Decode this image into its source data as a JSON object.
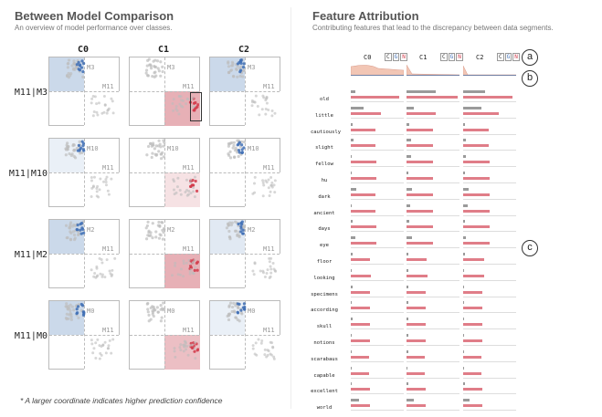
{
  "left": {
    "title": "Between Model Comparison",
    "subtitle": "An overview of model performance over classes.",
    "columns": [
      "C0",
      "C1",
      "C2"
    ],
    "rows": [
      {
        "label": "M11|M3",
        "top_label": "M3",
        "bottom_label": "M11",
        "tl": [
          "#cbd9ea",
          "#ffffff",
          "#cbd9ea"
        ],
        "br": [
          "#ffffff",
          "#e7b0b6",
          "#ffffff"
        ]
      },
      {
        "label": "M11|M10",
        "top_label": "M10",
        "bottom_label": "M11",
        "tl": [
          "#eaf0f7",
          "#ffffff",
          "#ffffff"
        ],
        "br": [
          "#ffffff",
          "#f6e2e4",
          "#ffffff"
        ]
      },
      {
        "label": "M11|M2",
        "top_label": "M2",
        "bottom_label": "M11",
        "tl": [
          "#cbd9ea",
          "#ffffff",
          "#e1e9f3"
        ],
        "br": [
          "#ffffff",
          "#e7b0b6",
          "#ffffff"
        ]
      },
      {
        "label": "M11|M0",
        "top_label": "M0",
        "bottom_label": "M11",
        "tl": [
          "#cbd9ea",
          "#ffffff",
          "#eaf0f7"
        ],
        "br": [
          "#ffffff",
          "#ecbfc4",
          "#ffffff"
        ]
      }
    ],
    "note": "* A larger coordinate indicates higher prediction confidence"
  },
  "right": {
    "title": "Feature Attribution",
    "subtitle": "Contributing features that lead to the discrepancy between data segments.",
    "columns": [
      "C0",
      "C1",
      "C2"
    ],
    "cgn_labels": [
      "C",
      "G",
      "N"
    ],
    "badges": [
      "a",
      "b",
      "c"
    ],
    "features": [
      {
        "name": "old",
        "bars": [
          [
            0.09,
            0.92
          ],
          [
            0.55,
            0.97
          ],
          [
            0.42,
            0.93
          ]
        ]
      },
      {
        "name": "little",
        "bars": [
          [
            0.24,
            0.57
          ],
          [
            0.14,
            0.56
          ],
          [
            0.34,
            0.68
          ]
        ]
      },
      {
        "name": "cautiously",
        "bars": [
          [
            0.03,
            0.46
          ],
          [
            0.05,
            0.5
          ],
          [
            0.04,
            0.49
          ]
        ]
      },
      {
        "name": "slight",
        "bars": [
          [
            0.05,
            0.47
          ],
          [
            0.08,
            0.5
          ],
          [
            0.05,
            0.49
          ]
        ]
      },
      {
        "name": "fellow",
        "bars": [
          [
            0.02,
            0.48
          ],
          [
            0.08,
            0.5
          ],
          [
            0.05,
            0.5
          ]
        ]
      },
      {
        "name": "hu",
        "bars": [
          [
            0.02,
            0.48
          ],
          [
            0.04,
            0.5
          ],
          [
            0.03,
            0.5
          ]
        ]
      },
      {
        "name": "dark",
        "bars": [
          [
            0.1,
            0.47
          ],
          [
            0.1,
            0.5
          ],
          [
            0.1,
            0.5
          ]
        ]
      },
      {
        "name": "ancient",
        "bars": [
          [
            0.02,
            0.47
          ],
          [
            0.07,
            0.5
          ],
          [
            0.08,
            0.5
          ]
        ]
      },
      {
        "name": "days",
        "bars": [
          [
            0.04,
            0.48
          ],
          [
            0.06,
            0.5
          ],
          [
            0.03,
            0.5
          ]
        ]
      },
      {
        "name": "eye",
        "bars": [
          [
            0.08,
            0.48
          ],
          [
            0.1,
            0.5
          ],
          [
            0.05,
            0.5
          ]
        ]
      },
      {
        "name": "floor",
        "bars": [
          [
            0.03,
            0.37
          ],
          [
            0.04,
            0.38
          ],
          [
            0.03,
            0.39
          ]
        ]
      },
      {
        "name": "looking",
        "bars": [
          [
            0.02,
            0.38
          ],
          [
            0.04,
            0.39
          ],
          [
            0.02,
            0.39
          ]
        ]
      },
      {
        "name": "specimens",
        "bars": [
          [
            0.03,
            0.37
          ],
          [
            0.03,
            0.36
          ],
          [
            0.02,
            0.37
          ]
        ]
      },
      {
        "name": "according",
        "bars": [
          [
            0.02,
            0.36
          ],
          [
            0.03,
            0.36
          ],
          [
            0.02,
            0.36
          ]
        ]
      },
      {
        "name": "skull",
        "bars": [
          [
            0.03,
            0.36
          ],
          [
            0.04,
            0.37
          ],
          [
            0.02,
            0.36
          ]
        ]
      },
      {
        "name": "notions",
        "bars": [
          [
            0.02,
            0.36
          ],
          [
            0.03,
            0.36
          ],
          [
            0.02,
            0.36
          ]
        ]
      },
      {
        "name": "scarabaus",
        "bars": [
          [
            0.02,
            0.35
          ],
          [
            0.03,
            0.35
          ],
          [
            0.02,
            0.34
          ]
        ]
      },
      {
        "name": "capable",
        "bars": [
          [
            0.02,
            0.35
          ],
          [
            0.02,
            0.35
          ],
          [
            0.02,
            0.35
          ]
        ]
      },
      {
        "name": "excellent",
        "bars": [
          [
            0.02,
            0.36
          ],
          [
            0.03,
            0.36
          ],
          [
            0.04,
            0.36
          ]
        ]
      },
      {
        "name": "world",
        "bars": [
          [
            0.16,
            0.36
          ],
          [
            0.13,
            0.36
          ],
          [
            0.12,
            0.36
          ]
        ]
      }
    ]
  },
  "colors": {
    "blue_dots": "#3f6fb5",
    "red_dots": "#d23a4a",
    "grey_dots": "#bdbdbd",
    "red_bar": "#e07d88",
    "grey_bar": "#9a9a9a"
  }
}
